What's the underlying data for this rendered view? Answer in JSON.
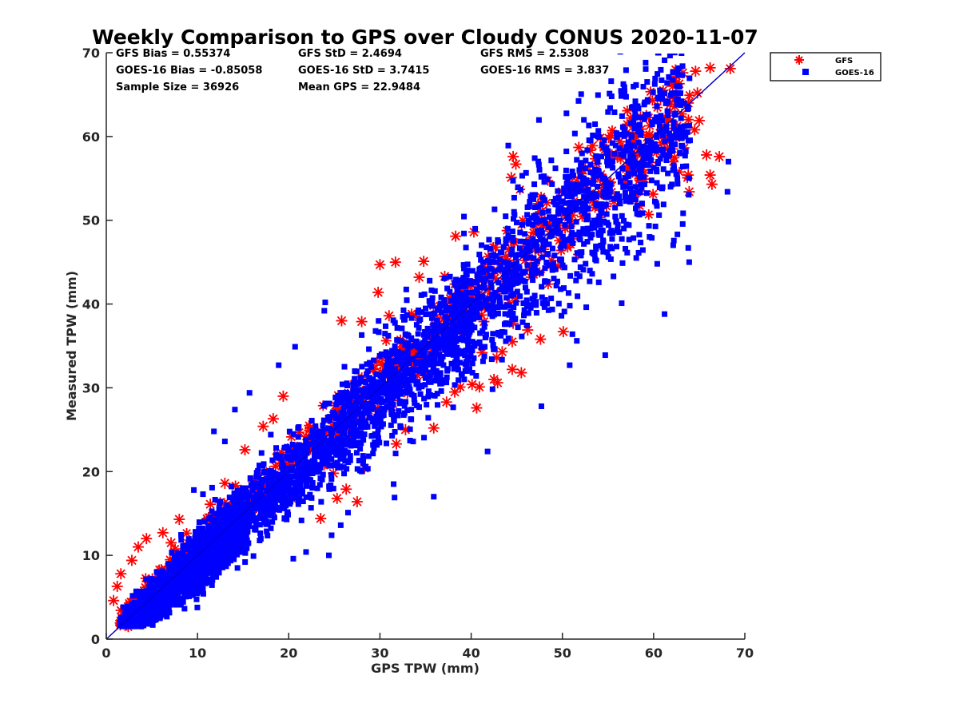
{
  "chart_data": {
    "type": "scatter",
    "title": "Weekly Comparison to GPS over Cloudy CONUS 2020-11-07",
    "xlabel": "GPS TPW (mm)",
    "ylabel": "Measured TPW (mm)",
    "xlim": [
      0,
      70
    ],
    "ylim": [
      0,
      70
    ],
    "xticks": [
      "0",
      "10",
      "20",
      "30",
      "40",
      "50",
      "60",
      "70"
    ],
    "yticks": [
      "0",
      "10",
      "20",
      "30",
      "40",
      "50",
      "60",
      "70"
    ],
    "grid": false,
    "legend_position": "outside-top-right",
    "stats": {
      "gfs_bias": "GFS Bias = 0.55374",
      "gfs_std": "GFS StD = 2.4694",
      "gfs_rms": "GFS RMS = 2.5308",
      "goes_bias": "GOES-16 Bias = -0.85058",
      "goes_std": "GOES-16 StD = 3.7415",
      "goes_rms": "GOES-16 RMS = 3.837",
      "sample_size": "Sample Size = 36926",
      "mean_gps": "Mean GPS = 22.9484"
    },
    "reference_line": {
      "x": [
        0,
        70
      ],
      "y": [
        0,
        70
      ],
      "color": "#0000cc"
    },
    "series": [
      {
        "name": "GFS",
        "marker": "asterisk",
        "color": "#ff0000",
        "outliers": [
          [
            68.4,
            68.1
          ],
          [
            66.2,
            68.2
          ],
          [
            64.6,
            67.8
          ],
          [
            63.2,
            67.6
          ],
          [
            62.1,
            66.0
          ],
          [
            62.8,
            66.3
          ],
          [
            64.8,
            65.2
          ],
          [
            61.5,
            64.2
          ],
          [
            63.8,
            64.0
          ],
          [
            65.0,
            61.9
          ],
          [
            64.5,
            60.8
          ],
          [
            61.2,
            59.3
          ],
          [
            60.3,
            58.6
          ],
          [
            60.7,
            60.4
          ],
          [
            61.6,
            62.1
          ],
          [
            65.8,
            57.8
          ],
          [
            67.2,
            57.6
          ],
          [
            66.2,
            55.4
          ],
          [
            63.8,
            55.4
          ],
          [
            66.4,
            54.3
          ],
          [
            63.9,
            53.4
          ],
          [
            59.2,
            62.5
          ],
          [
            57.5,
            62.2
          ],
          [
            57.1,
            60.5
          ],
          [
            53.3,
            58.9
          ],
          [
            51.8,
            58.7
          ],
          [
            54.7,
            58.5
          ],
          [
            44.6,
            57.6
          ],
          [
            44.9,
            56.7
          ],
          [
            52.5,
            56.2
          ],
          [
            44.4,
            55.1
          ],
          [
            38.3,
            48.1
          ],
          [
            40.3,
            48.6
          ],
          [
            31.7,
            45.0
          ],
          [
            30.0,
            44.7
          ],
          [
            34.8,
            45.1
          ],
          [
            37.1,
            43.3
          ],
          [
            34.3,
            43.2
          ],
          [
            29.8,
            41.4
          ],
          [
            25.8,
            38.0
          ],
          [
            31.0,
            38.6
          ],
          [
            28.0,
            37.9
          ],
          [
            41.4,
            37.9
          ],
          [
            44.6,
            37.7
          ],
          [
            46.2,
            36.9
          ],
          [
            50.1,
            36.7
          ],
          [
            44.5,
            35.5
          ],
          [
            47.6,
            35.8
          ],
          [
            41.2,
            34.2
          ],
          [
            43.4,
            34.3
          ],
          [
            42.8,
            33.6
          ],
          [
            44.5,
            32.2
          ],
          [
            45.5,
            31.8
          ],
          [
            42.5,
            31.0
          ],
          [
            42.9,
            30.6
          ],
          [
            40.1,
            30.4
          ],
          [
            40.9,
            30.1
          ],
          [
            38.2,
            29.5
          ],
          [
            37.3,
            28.3
          ],
          [
            40.6,
            27.6
          ],
          [
            35.9,
            25.2
          ],
          [
            31.8,
            23.3
          ],
          [
            32.8,
            25.0
          ],
          [
            26.3,
            17.9
          ],
          [
            27.5,
            16.4
          ],
          [
            23.5,
            14.4
          ],
          [
            25.3,
            16.8
          ],
          [
            24.9,
            19.8
          ],
          [
            28.3,
            20.4
          ],
          [
            18.3,
            26.3
          ],
          [
            19.4,
            29.0
          ],
          [
            17.2,
            25.4
          ],
          [
            15.2,
            22.6
          ],
          [
            13.0,
            18.6
          ],
          [
            11.4,
            16.1
          ],
          [
            8.0,
            14.3
          ],
          [
            7.1,
            11.5
          ],
          [
            6.2,
            12.7
          ],
          [
            4.4,
            12.0
          ],
          [
            3.5,
            11.0
          ],
          [
            2.8,
            9.4
          ],
          [
            1.6,
            7.8
          ],
          [
            1.2,
            6.3
          ],
          [
            0.8,
            4.6
          ]
        ]
      },
      {
        "name": "GOES-16",
        "marker": "square",
        "color": "#0000ff",
        "outliers": [
          [
            56.8,
            65.9
          ],
          [
            55.4,
            64.8
          ],
          [
            58.0,
            64.2
          ],
          [
            60.3,
            62.3
          ],
          [
            61.4,
            61.2
          ],
          [
            68.2,
            57.0
          ],
          [
            68.1,
            53.4
          ],
          [
            63.9,
            45.0
          ],
          [
            63.8,
            46.7
          ],
          [
            61.2,
            38.8
          ],
          [
            60.4,
            44.8
          ],
          [
            58.1,
            45.5
          ],
          [
            55.6,
            43.3
          ],
          [
            54.7,
            33.9
          ],
          [
            50.8,
            32.7
          ],
          [
            47.7,
            27.8
          ],
          [
            41.8,
            22.4
          ],
          [
            35.9,
            17.0
          ],
          [
            31.5,
            18.5
          ],
          [
            31.6,
            16.9
          ],
          [
            24.4,
            10.0
          ],
          [
            24.7,
            12.4
          ],
          [
            25.7,
            13.6
          ],
          [
            26.5,
            15.1
          ],
          [
            21.9,
            10.4
          ],
          [
            20.5,
            9.6
          ],
          [
            24.0,
            40.2
          ],
          [
            23.9,
            39.2
          ],
          [
            20.7,
            34.9
          ],
          [
            18.9,
            32.7
          ],
          [
            15.7,
            29.4
          ],
          [
            14.1,
            27.4
          ],
          [
            13.0,
            23.6
          ],
          [
            11.8,
            24.8
          ],
          [
            10.6,
            17.3
          ],
          [
            9.6,
            17.8
          ],
          [
            1.6,
            2.2
          ],
          [
            3.0,
            2.6
          ],
          [
            7.6,
            4.1
          ],
          [
            9.9,
            5.6
          ],
          [
            44.7,
            51.0
          ],
          [
            47.1,
            50.6
          ],
          [
            52.4,
            50.8
          ],
          [
            49.9,
            38.6
          ],
          [
            51.1,
            36.4
          ],
          [
            56.5,
            40.1
          ],
          [
            59.4,
            56.6
          ],
          [
            59.8,
            47.9
          ],
          [
            28.0,
            36.3
          ],
          [
            36.3,
            39.4
          ],
          [
            33.0,
            30.0
          ],
          [
            33.3,
            23.7
          ],
          [
            28.4,
            20.6
          ],
          [
            30.5,
            27.4
          ]
        ]
      }
    ]
  }
}
